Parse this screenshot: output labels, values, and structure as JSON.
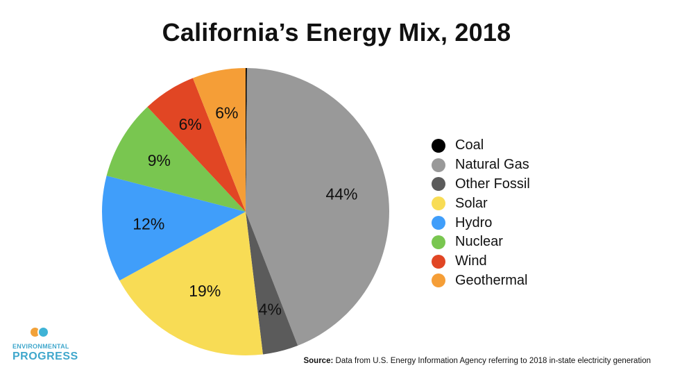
{
  "chart_data": {
    "type": "pie",
    "title": "California’s Energy Mix, 2018",
    "start_angle_deg": 0,
    "direction": "clockwise",
    "slices": [
      {
        "label": "Coal",
        "value": 0.15,
        "display": "",
        "color": "#000000"
      },
      {
        "label": "Natural Gas",
        "value": 44,
        "display": "44%",
        "color": "#999999"
      },
      {
        "label": "Other Fossil",
        "value": 4,
        "display": "4%",
        "color": "#5b5b5b"
      },
      {
        "label": "Solar",
        "value": 19,
        "display": "19%",
        "color": "#f8dc55"
      },
      {
        "label": "Hydro",
        "value": 12,
        "display": "12%",
        "color": "#409efa"
      },
      {
        "label": "Nuclear",
        "value": 9,
        "display": "9%",
        "color": "#79c650"
      },
      {
        "label": "Wind",
        "value": 6,
        "display": "6%",
        "color": "#e14624"
      },
      {
        "label": "Geothermal",
        "value": 6,
        "display": "6%",
        "color": "#f59e37"
      }
    ],
    "legend_position": "right"
  },
  "logo": {
    "line1": "ENVIRONMENTAL",
    "line2": "PROGRESS"
  },
  "source": {
    "label": "Source:",
    "text": "Data from U.S. Energy Information Agency referring to 2018 in-state electricity generation"
  }
}
